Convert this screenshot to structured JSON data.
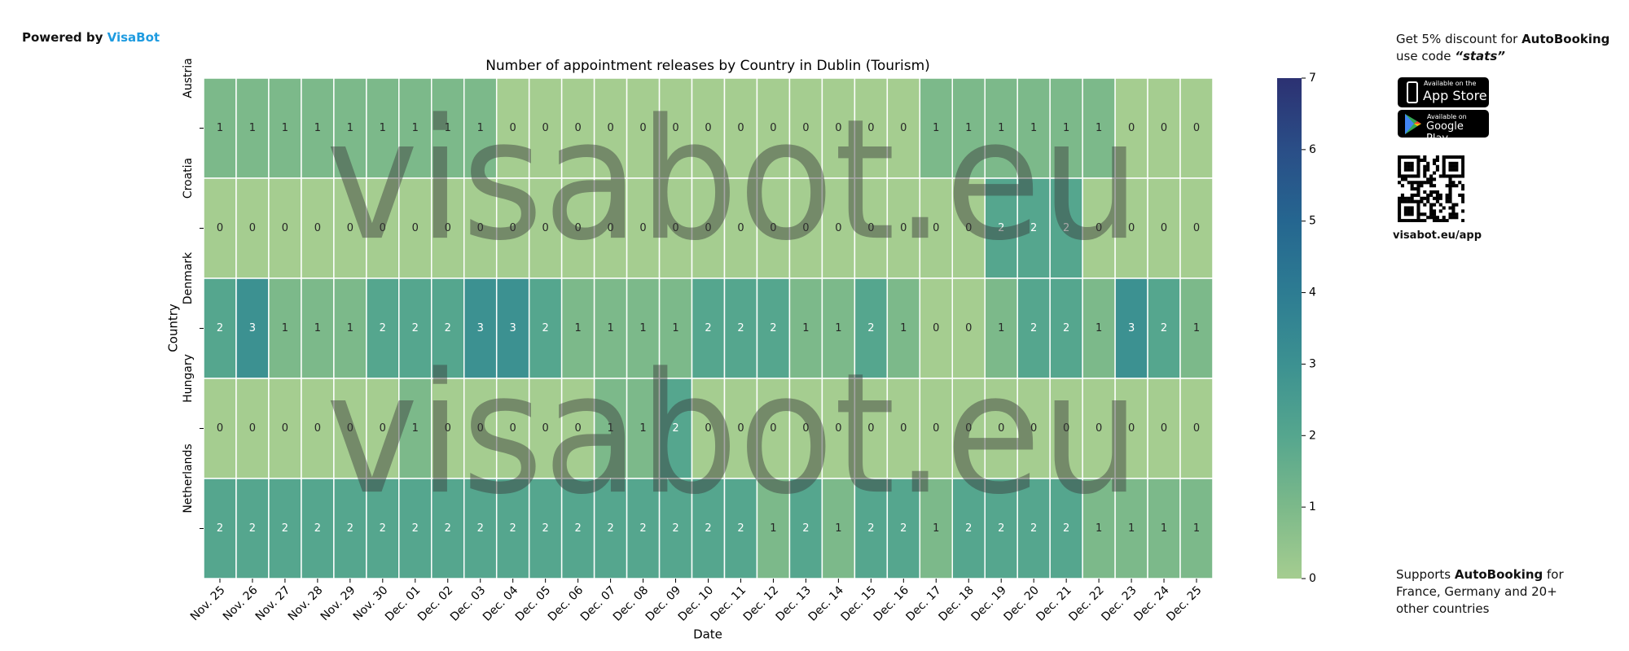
{
  "header": {
    "powered_by": "Powered by",
    "brand": "VisaBot"
  },
  "sidebar": {
    "promo": [
      "Get 5% discount for",
      "AutoBooking",
      "use code",
      "“stats”"
    ],
    "app_store": [
      "Available on the",
      "App Store"
    ],
    "google_play": [
      "Available on",
      "Google Play"
    ],
    "qr_link": "visabot.eu/app",
    "supports": [
      "Supports",
      "AutoBooking",
      "for France, Germany and 20+ other countries"
    ]
  },
  "watermark": "visabot.eu",
  "chart_data": {
    "type": "heatmap",
    "title": "Number of appointment releases by Country in Dublin (Tourism)",
    "x_label": "Date",
    "y_label": "Country",
    "categories": [
      "Nov. 25",
      "Nov. 26",
      "Nov. 27",
      "Nov. 28",
      "Nov. 29",
      "Nov. 30",
      "Dec. 01",
      "Dec. 02",
      "Dec. 03",
      "Dec. 04",
      "Dec. 05",
      "Dec. 06",
      "Dec. 07",
      "Dec. 08",
      "Dec. 09",
      "Dec. 10",
      "Dec. 11",
      "Dec. 12",
      "Dec. 13",
      "Dec. 14",
      "Dec. 15",
      "Dec. 16",
      "Dec. 17",
      "Dec. 18",
      "Dec. 19",
      "Dec. 20",
      "Dec. 21",
      "Dec. 22",
      "Dec. 23",
      "Dec. 24",
      "Dec. 25"
    ],
    "series": [
      {
        "name": "Austria",
        "values": [
          1,
          1,
          1,
          1,
          1,
          1,
          1,
          1,
          1,
          0,
          0,
          0,
          0,
          0,
          0,
          0,
          0,
          0,
          0,
          0,
          0,
          0,
          1,
          1,
          1,
          1,
          1,
          1,
          0,
          0,
          0
        ]
      },
      {
        "name": "Croatia",
        "values": [
          0,
          0,
          0,
          0,
          0,
          0,
          0,
          0,
          0,
          0,
          0,
          0,
          0,
          0,
          0,
          0,
          0,
          0,
          0,
          0,
          0,
          0,
          0,
          0,
          2,
          2,
          2,
          0,
          0,
          0,
          0
        ]
      },
      {
        "name": "Denmark",
        "values": [
          2,
          3,
          1,
          1,
          1,
          2,
          2,
          2,
          3,
          3,
          2,
          1,
          1,
          1,
          1,
          2,
          2,
          2,
          1,
          1,
          2,
          1,
          0,
          0,
          1,
          2,
          2,
          1,
          3,
          2,
          1
        ]
      },
      {
        "name": "Hungary",
        "values": [
          0,
          0,
          0,
          0,
          0,
          0,
          1,
          0,
          0,
          0,
          0,
          0,
          1,
          1,
          2,
          0,
          0,
          0,
          0,
          0,
          0,
          0,
          0,
          0,
          0,
          0,
          0,
          0,
          0,
          0,
          0
        ]
      },
      {
        "name": "Netherlands",
        "values": [
          2,
          2,
          2,
          2,
          2,
          2,
          2,
          2,
          2,
          2,
          2,
          2,
          2,
          2,
          2,
          2,
          2,
          1,
          2,
          1,
          2,
          2,
          1,
          2,
          2,
          2,
          2,
          1,
          1,
          1,
          1
        ]
      }
    ],
    "clim": [
      0,
      7
    ],
    "cticks": [
      0,
      1,
      2,
      3,
      4,
      5,
      6,
      7
    ],
    "colormap": [
      "#a5cd90",
      "#7cb98a",
      "#55a68e",
      "#3c9191",
      "#2d7c92",
      "#256690",
      "#2a4e87",
      "#2c3172"
    ]
  }
}
